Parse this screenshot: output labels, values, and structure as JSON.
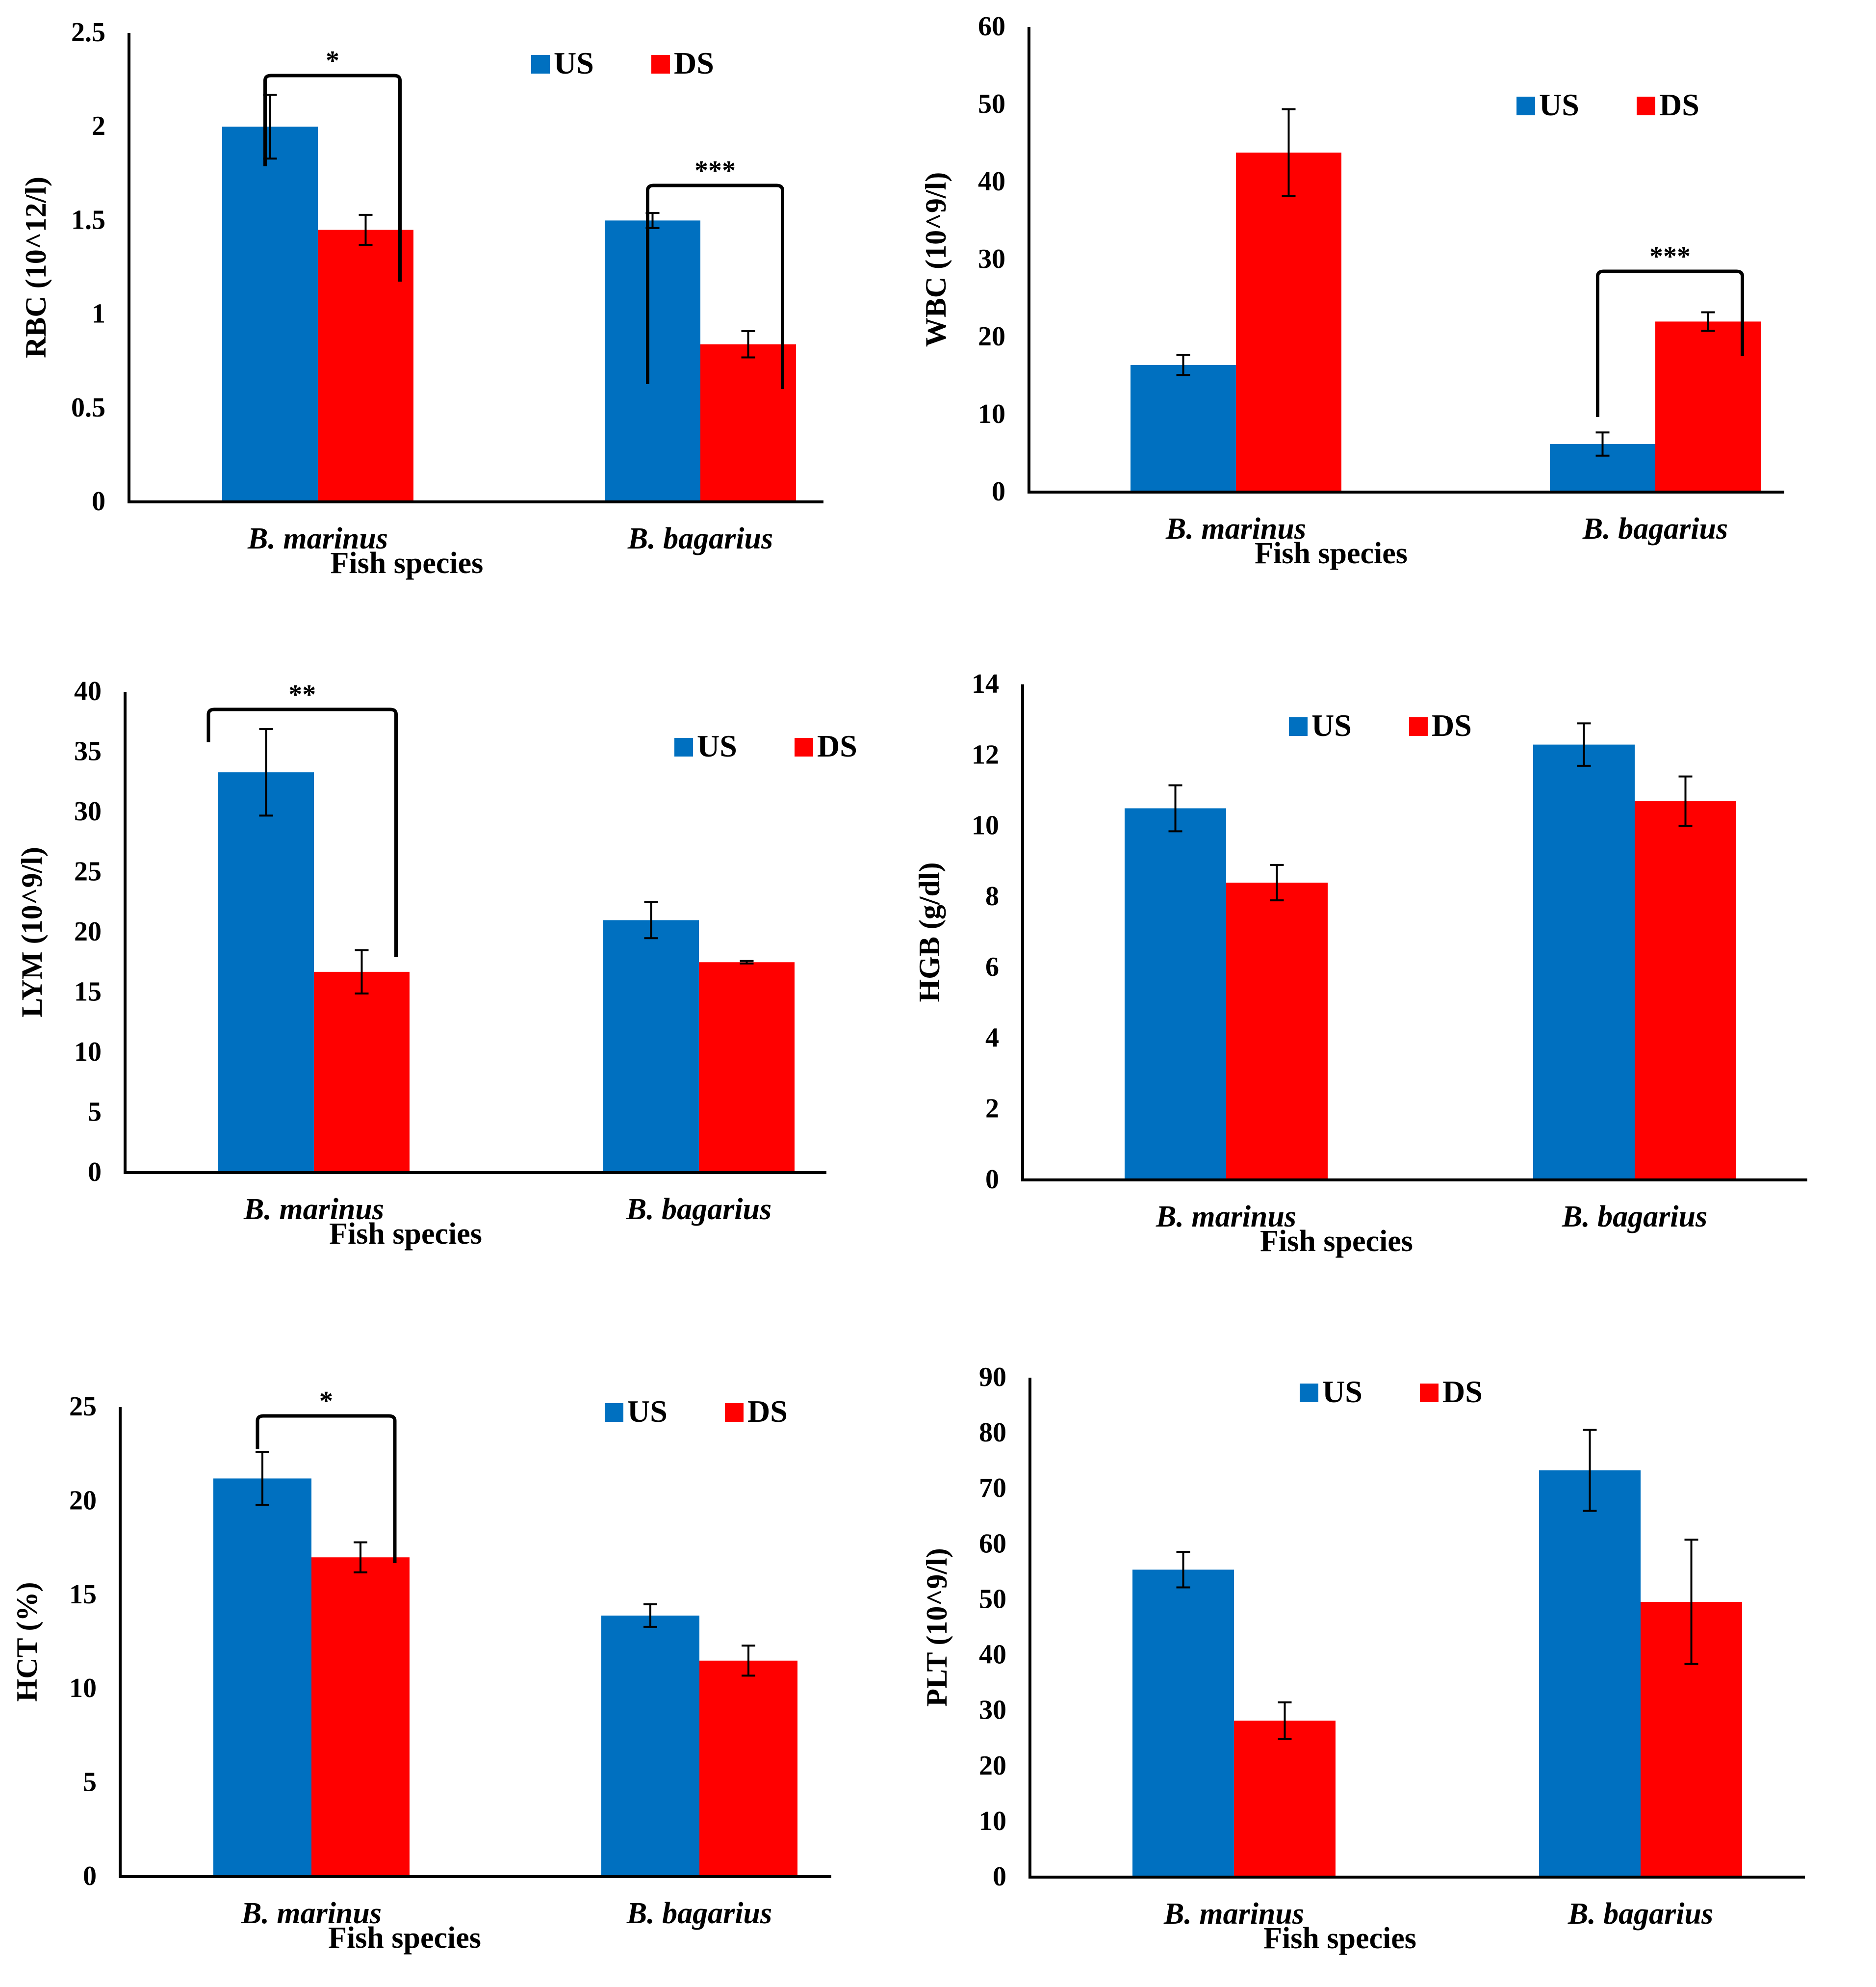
{
  "colors": {
    "us": "#0070c0",
    "ds": "#ff0000",
    "axis": "#000000"
  },
  "chart_data": [
    {
      "type": "bar",
      "id": "rbc",
      "categories": [
        "B. marinus",
        "B. bagarius"
      ],
      "series": [
        {
          "name": "US",
          "values": [
            2.0,
            1.5
          ],
          "errors": [
            0.17,
            0.04
          ]
        },
        {
          "name": "DS",
          "values": [
            1.45,
            0.84
          ],
          "errors": [
            0.08,
            0.07
          ]
        }
      ],
      "xlabel": "Fish species",
      "ylabel": "RBC (10^12/l)",
      "ylim": [
        0,
        2.5
      ],
      "yticks": [
        0,
        0.5,
        1,
        1.5,
        2,
        2.5
      ],
      "ytick_labels": [
        "0",
        "0.5",
        "1",
        "1.5",
        "2",
        "2.5"
      ],
      "legend": {
        "position": "top-right",
        "labels": [
          "US",
          "DS"
        ]
      },
      "significance": [
        {
          "category": 0,
          "label": "*"
        },
        {
          "category": 1,
          "label": "***"
        }
      ]
    },
    {
      "type": "bar",
      "id": "wbc",
      "categories": [
        "B. marinus",
        "B. bagarius"
      ],
      "series": [
        {
          "name": "US",
          "values": [
            16.4,
            6.2
          ],
          "errors": [
            1.3,
            1.5
          ]
        },
        {
          "name": "DS",
          "values": [
            43.8,
            22.0
          ],
          "errors": [
            5.6,
            1.2
          ]
        }
      ],
      "xlabel": "Fish species",
      "ylabel": "WBC (10^9/l)",
      "ylim": [
        0,
        60
      ],
      "yticks": [
        0,
        10,
        20,
        30,
        40,
        50,
        60
      ],
      "ytick_labels": [
        "0",
        "10",
        "20",
        "30",
        "40",
        "50",
        "60"
      ],
      "legend": {
        "position": "top-right",
        "labels": [
          "US",
          "DS"
        ]
      },
      "significance": [
        {
          "category": 1,
          "label": "***"
        }
      ]
    },
    {
      "type": "bar",
      "id": "lym",
      "categories": [
        "B. marinus",
        "B. bagarius"
      ],
      "series": [
        {
          "name": "US",
          "values": [
            33.3,
            21.0
          ],
          "errors": [
            3.6,
            1.5
          ]
        },
        {
          "name": "DS",
          "values": [
            16.7,
            17.5
          ],
          "errors": [
            1.8,
            0.1
          ]
        }
      ],
      "xlabel": "Fish species",
      "ylabel": "LYM (10^9/l)",
      "ylim": [
        0,
        40
      ],
      "yticks": [
        0,
        5,
        10,
        15,
        20,
        25,
        30,
        35,
        40
      ],
      "ytick_labels": [
        "0",
        "5",
        "10",
        "15",
        "20",
        "25",
        "30",
        "35",
        "40"
      ],
      "legend": {
        "position": "top-right",
        "labels": [
          "US",
          "DS"
        ]
      },
      "significance": [
        {
          "category": 0,
          "label": "**"
        }
      ]
    },
    {
      "type": "bar",
      "id": "hgb",
      "categories": [
        "B. marinus",
        "B. bagarius"
      ],
      "series": [
        {
          "name": "US",
          "values": [
            10.5,
            12.3
          ],
          "errors": [
            0.65,
            0.6
          ]
        },
        {
          "name": "DS",
          "values": [
            8.4,
            10.7
          ],
          "errors": [
            0.5,
            0.7
          ]
        }
      ],
      "xlabel": "Fish species",
      "ylabel": "HGB (g/dl)",
      "ylim": [
        0,
        14
      ],
      "yticks": [
        0,
        2,
        4,
        6,
        8,
        10,
        12,
        14
      ],
      "ytick_labels": [
        "0",
        "2",
        "4",
        "6",
        "8",
        "10",
        "12",
        "14"
      ],
      "legend": {
        "position": "top-right",
        "labels": [
          "US",
          "DS"
        ]
      },
      "significance": []
    },
    {
      "type": "bar",
      "id": "hct",
      "categories": [
        "B. marinus",
        "B. bagarius"
      ],
      "series": [
        {
          "name": "US",
          "values": [
            21.2,
            13.9
          ],
          "errors": [
            1.4,
            0.6
          ]
        },
        {
          "name": "DS",
          "values": [
            17.0,
            11.5
          ],
          "errors": [
            0.8,
            0.8
          ]
        }
      ],
      "xlabel": "Fish species",
      "ylabel": "HCT (%)",
      "ylim": [
        0,
        25
      ],
      "yticks": [
        0,
        5,
        10,
        15,
        20,
        25
      ],
      "ytick_labels": [
        "0",
        "5",
        "10",
        "15",
        "20",
        "25"
      ],
      "legend": {
        "position": "top-right",
        "labels": [
          "US",
          "DS"
        ]
      },
      "significance": [
        {
          "category": 0,
          "label": "*"
        }
      ]
    },
    {
      "type": "bar",
      "id": "plt",
      "categories": [
        "B. marinus",
        "B. bagarius"
      ],
      "series": [
        {
          "name": "US",
          "values": [
            55.4,
            73.3
          ],
          "errors": [
            3.2,
            7.3
          ]
        },
        {
          "name": "DS",
          "values": [
            28.2,
            49.6
          ],
          "errors": [
            3.3,
            11.2
          ]
        }
      ],
      "xlabel": "Fish species",
      "ylabel": "PLT (10^9/l)",
      "ylim": [
        0,
        90
      ],
      "yticks": [
        0,
        10,
        20,
        30,
        40,
        50,
        60,
        70,
        80,
        90
      ],
      "ytick_labels": [
        "0",
        "10",
        "20",
        "30",
        "40",
        "50",
        "60",
        "70",
        "80",
        "90"
      ],
      "legend": {
        "position": "top-right",
        "labels": [
          "US",
          "DS"
        ]
      },
      "significance": []
    }
  ]
}
